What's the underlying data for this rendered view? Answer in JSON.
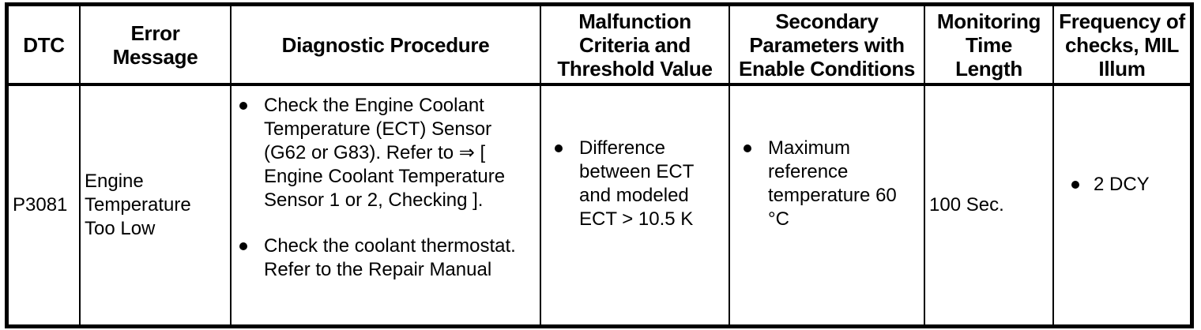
{
  "table": {
    "headers": [
      {
        "lines": [
          "DTC"
        ]
      },
      {
        "lines": [
          "Error",
          "Message"
        ]
      },
      {
        "lines": [
          "Diagnostic Procedure"
        ]
      },
      {
        "lines": [
          "Malfunction",
          "Criteria and",
          "Threshold Value"
        ]
      },
      {
        "lines": [
          "Secondary",
          "Parameters with",
          "Enable Conditions"
        ]
      },
      {
        "lines": [
          "Monitoring",
          "Time",
          "Length"
        ]
      },
      {
        "lines": [
          "Frequency of",
          "checks, MIL",
          "Illum"
        ]
      }
    ],
    "row": {
      "dtc": "P3081",
      "error_message": "Engine Temperature Too Low",
      "diagnostic_procedure": [
        "Check the Engine Coolant Temperature (ECT) Sensor (G62 or G83). Refer to ⇒ [ Engine Coolant Temperature Sensor 1 or 2, Checking ].",
        "Check the coolant thermostat. Refer to the Repair Manual"
      ],
      "malfunction_criteria": [
        "Difference between ECT and modeled ECT > 10.5 K"
      ],
      "secondary_parameters": [
        "Maximum reference temperature 60 °C"
      ],
      "monitoring_time_length": "100 Sec.",
      "frequency_of_checks": [
        "2 DCY"
      ]
    }
  },
  "colors": {
    "border": "#000000",
    "text": "#000000",
    "background": "#ffffff"
  }
}
